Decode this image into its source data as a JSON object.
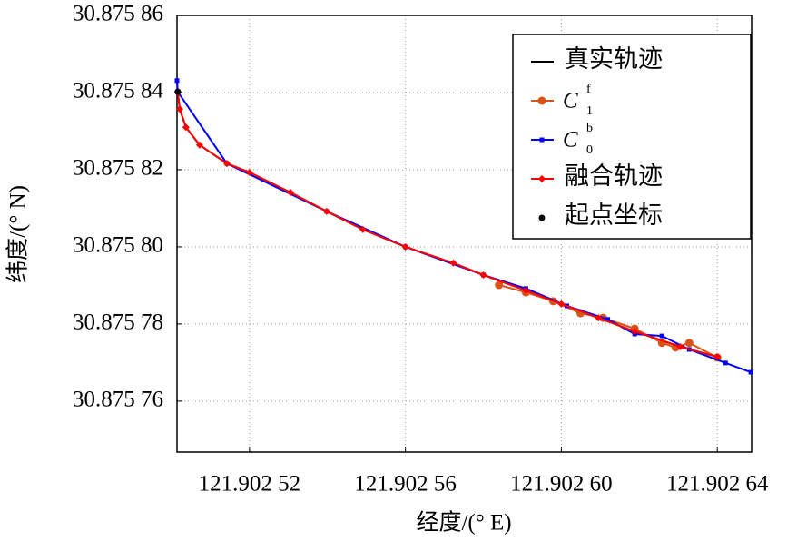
{
  "chart_data": {
    "type": "line",
    "xlabel": "经度/(° E)",
    "ylabel": "纬度/(° N)",
    "xlim": [
      121.9025014,
      121.9026488
    ],
    "ylim": [
      30.8757468,
      30.87586
    ],
    "xticks": [
      {
        "value": 121.90252,
        "label": "121.902 52"
      },
      {
        "value": 121.90256,
        "label": "121.902 56"
      },
      {
        "value": 121.9026,
        "label": "121.902 60"
      },
      {
        "value": 121.90264,
        "label": "121.902 64"
      }
    ],
    "yticks": [
      {
        "value": 30.87576,
        "label": "30.875 76"
      },
      {
        "value": 30.87578,
        "label": "30.875 78"
      },
      {
        "value": 30.8758,
        "label": "30.875 80"
      },
      {
        "value": 30.87582,
        "label": "30.875 82"
      },
      {
        "value": 30.87584,
        "label": "30.875 84"
      },
      {
        "value": 30.87586,
        "label": "30.875 86"
      }
    ],
    "grid": true,
    "legend": "upper right",
    "series": [
      {
        "name": "真实轨迹",
        "color": "#000000",
        "marker": "none",
        "x": [
          121.9025016,
          121.9025021,
          121.9025037,
          121.9025072,
          121.9025142,
          121.90252,
          121.9025305,
          121.9025398,
          121.9025491,
          121.90256,
          121.9025723,
          121.90258,
          121.9025909,
          121.9026,
          121.9026095,
          121.9026188,
          121.9026305,
          121.90264
        ],
        "values": [
          30.8758402,
          30.8758357,
          30.875831,
          30.8758264,
          30.8758216,
          30.8758193,
          30.8758141,
          30.8758092,
          30.8758045,
          30.8758,
          30.8757958,
          30.8757927,
          30.8757887,
          30.8757852,
          30.8757816,
          30.8757781,
          30.8757741,
          30.8757715
        ]
      },
      {
        "name": "C",
        "sup": "f",
        "sub": "1",
        "color": "#d95319",
        "marker": "circle",
        "x": [
          121.902584,
          121.9025909,
          121.9025979,
          121.9026049,
          121.9026107,
          121.9026188,
          121.9026258,
          121.9026293,
          121.9026328,
          121.90264
        ],
        "values": [
          30.8757901,
          30.8757882,
          30.8757859,
          30.8757828,
          30.8757816,
          30.8757788,
          30.8757751,
          30.8757739,
          30.8757751,
          30.8757713
        ]
      },
      {
        "name": "C",
        "sup": "b",
        "sub": "0",
        "color": "#0000ff",
        "marker": "square",
        "x": [
          121.9025014,
          121.9025016,
          121.9025142,
          121.9025398,
          121.90256,
          121.90258,
          121.9025909,
          121.9026014,
          121.9026119,
          121.9026188,
          121.9026258,
          121.9026328,
          121.9026421,
          121.9026486
        ],
        "values": [
          30.8758431,
          30.8758402,
          30.8758216,
          30.8758092,
          30.8758,
          30.8757927,
          30.8757892,
          30.8757847,
          30.8757812,
          30.8757774,
          30.8757769,
          30.8757734,
          30.8757699,
          30.8757675
        ]
      },
      {
        "name": "融合轨迹",
        "color": "#ff0000",
        "marker": "diamond",
        "x": [
          121.9025016,
          121.9025021,
          121.9025037,
          121.9025072,
          121.9025142,
          121.90252,
          121.9025305,
          121.9025398,
          121.9025491,
          121.90256,
          121.9025723,
          121.90258,
          121.9025909,
          121.9026,
          121.9026095,
          121.9026188,
          121.9026305,
          121.90264
        ],
        "values": [
          30.8758402,
          30.8758357,
          30.875831,
          30.8758264,
          30.8758216,
          30.8758193,
          30.8758141,
          30.8758092,
          30.8758045,
          30.8758,
          30.8757958,
          30.8757927,
          30.8757887,
          30.8757852,
          30.8757816,
          30.8757781,
          30.8757741,
          30.8757715
        ]
      },
      {
        "name": "起点坐标",
        "color": "#000000",
        "marker": "dot",
        "linestyle": "none",
        "x": [
          121.9025016
        ],
        "values": [
          30.8758402
        ]
      }
    ]
  }
}
